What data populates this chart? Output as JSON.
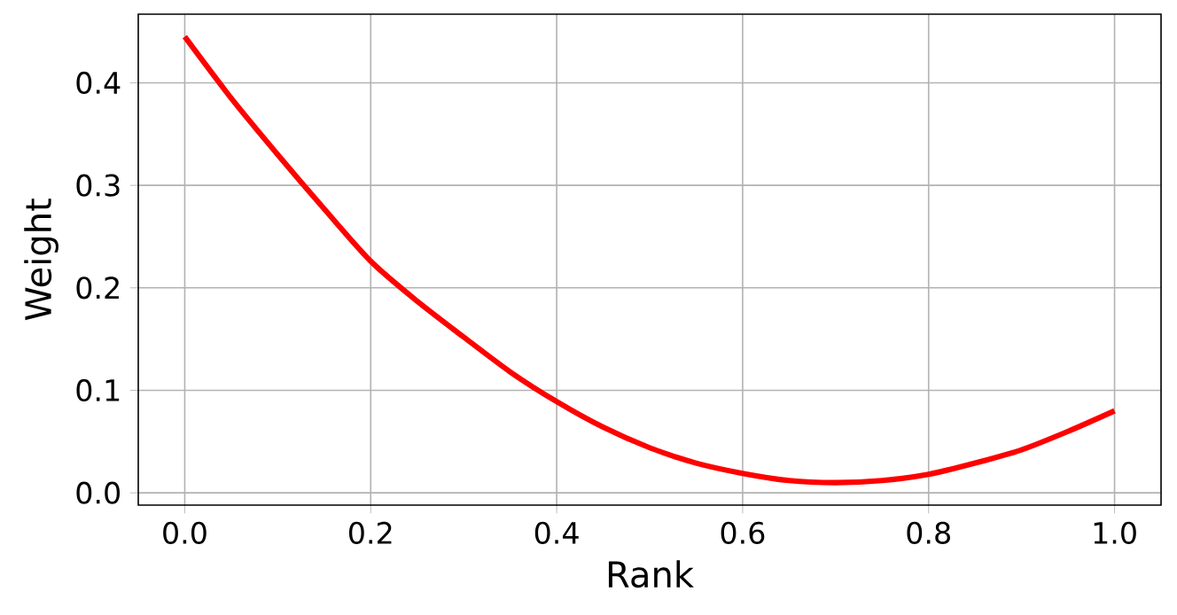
{
  "chart_data": {
    "type": "line",
    "xlabel": "Rank",
    "ylabel": "Weight",
    "x": [
      0,
      0.05,
      0.1,
      0.15,
      0.2,
      0.25,
      0.3,
      0.35,
      0.4,
      0.45,
      0.5,
      0.55,
      0.6,
      0.65,
      0.7,
      0.75,
      0.8,
      0.85,
      0.9,
      0.95,
      1.0
    ],
    "series": [
      {
        "color": "#ff0000",
        "values": [
          0.445,
          0.385,
          0.33,
          0.277,
          0.226,
          0.187,
          0.152,
          0.118,
          0.089,
          0.064,
          0.044,
          0.029,
          0.019,
          0.012,
          0.01,
          0.012,
          0.018,
          0.029,
          0.042,
          0.06,
          0.08
        ]
      }
    ],
    "xlim": [
      -0.05,
      1.05
    ],
    "ylim": [
      -0.012,
      0.467
    ],
    "xticks": [
      {
        "value": 0,
        "label": "0.0"
      },
      {
        "value": 0.2,
        "label": "0.2"
      },
      {
        "value": 0.4,
        "label": "0.4"
      },
      {
        "value": 0.6,
        "label": "0.6"
      },
      {
        "value": 0.8,
        "label": "0.8"
      },
      {
        "value": 1.0,
        "label": "1.0"
      }
    ],
    "yticks": [
      {
        "value": 0,
        "label": "0.0"
      },
      {
        "value": 0.1,
        "label": "0.1"
      },
      {
        "value": 0.2,
        "label": "0.2"
      },
      {
        "value": 0.3,
        "label": "0.3"
      },
      {
        "value": 0.4,
        "label": "0.4"
      }
    ],
    "grid": true,
    "marker": "none",
    "line_style": "solid"
  }
}
